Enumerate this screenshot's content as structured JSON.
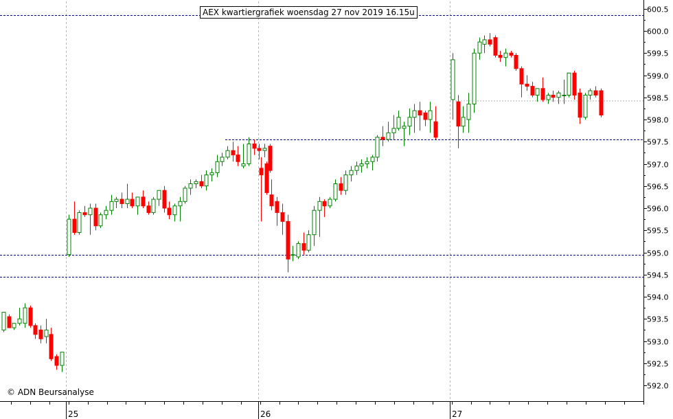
{
  "title": "AEX kwartiergrafiek woensdag 27 nov 2019 16.15u",
  "copyright": "© ADN Beursanalyse",
  "colors": {
    "up": "#008000",
    "down": "#ff0000",
    "refline": "#00008b",
    "grid": "#b4b4b4"
  },
  "chart_data": {
    "type": "candlestick",
    "y_axis_ticks": [
      "592.0",
      "592.5",
      "593.0",
      "593.5",
      "594.0",
      "594.5",
      "595.0",
      "595.5",
      "596.0",
      "596.5",
      "597.0",
      "597.5",
      "598.0",
      "598.5",
      "599.0",
      "599.5",
      "600.0",
      "600.5"
    ],
    "ylim": [
      591.9,
      600.6
    ],
    "x_axis_ticks": [
      "25",
      "26",
      "27"
    ],
    "reference_lines": [
      600.35,
      597.55,
      594.95,
      594.45
    ],
    "last_price": 598.42,
    "series": [
      {
        "day": "24",
        "candles": [
          [
            593.25,
            593.65,
            593.2,
            593.65
          ],
          [
            593.55,
            593.6,
            593.3,
            593.3
          ],
          [
            593.3,
            593.4,
            593.25,
            593.4
          ],
          [
            593.4,
            593.75,
            593.35,
            593.5
          ],
          [
            593.4,
            593.85,
            593.3,
            593.75
          ],
          [
            593.75,
            593.8,
            593.3,
            593.35
          ],
          [
            593.35,
            593.4,
            593.05,
            593.15
          ],
          [
            593.25,
            593.35,
            592.95,
            593.05
          ],
          [
            593.1,
            593.5,
            592.95,
            593.25
          ],
          [
            593.15,
            593.3,
            592.55,
            592.6
          ],
          [
            592.65,
            592.7,
            592.35,
            592.45
          ],
          [
            592.45,
            592.75,
            592.3,
            592.75
          ]
        ]
      },
      {
        "day": "25",
        "candles": [
          [
            594.95,
            595.85,
            594.9,
            595.75
          ],
          [
            595.75,
            596.15,
            595.4,
            595.45
          ],
          [
            595.45,
            595.95,
            595.4,
            595.9
          ],
          [
            595.9,
            596.05,
            595.8,
            595.85
          ],
          [
            595.85,
            596.1,
            595.4,
            596.0
          ],
          [
            596.0,
            596.1,
            595.5,
            595.6
          ],
          [
            595.6,
            595.9,
            595.55,
            595.85
          ],
          [
            595.85,
            596.05,
            595.75,
            595.95
          ],
          [
            595.95,
            596.3,
            595.85,
            596.15
          ],
          [
            596.15,
            596.25,
            596.0,
            596.2
          ],
          [
            596.2,
            596.35,
            596.0,
            596.1
          ],
          [
            596.1,
            596.55,
            596.0,
            596.2
          ],
          [
            596.2,
            596.35,
            596.0,
            596.05
          ],
          [
            596.05,
            596.25,
            595.85,
            596.25
          ],
          [
            596.25,
            596.4,
            596.0,
            596.05
          ],
          [
            596.05,
            596.15,
            595.85,
            595.9
          ],
          [
            595.9,
            596.25,
            595.85,
            596.2
          ],
          [
            596.2,
            596.4,
            596.05,
            596.4
          ],
          [
            596.4,
            596.5,
            595.9,
            596.0
          ],
          [
            596.0,
            596.15,
            595.75,
            595.85
          ],
          [
            595.85,
            596.1,
            595.7,
            596.05
          ],
          [
            596.05,
            596.25,
            595.7,
            596.15
          ],
          [
            596.15,
            596.5,
            596.1,
            596.45
          ],
          [
            596.45,
            596.65,
            596.3,
            596.55
          ],
          [
            596.55,
            596.65,
            596.45,
            596.6
          ],
          [
            596.6,
            596.75,
            596.45,
            596.5
          ],
          [
            596.5,
            596.85,
            596.4,
            596.75
          ],
          [
            596.75,
            596.9,
            596.6,
            596.8
          ],
          [
            596.8,
            597.2,
            596.7,
            597.05
          ],
          [
            597.05,
            597.25,
            596.95,
            597.15
          ],
          [
            597.15,
            597.4,
            597.1,
            597.3
          ],
          [
            597.3,
            597.5,
            597.05,
            597.2
          ],
          [
            597.2,
            597.4,
            596.95,
            597.05
          ],
          [
            596.95,
            597.45,
            596.9,
            597.0
          ],
          [
            597.0,
            597.6,
            596.95,
            597.45
          ],
          [
            597.45,
            597.55,
            597.2,
            597.35
          ],
          [
            597.35,
            597.45,
            597.1,
            597.3
          ],
          [
            597.3,
            597.45,
            597.15,
            597.35
          ],
          [
            597.4,
            597.45,
            596.8,
            596.85
          ]
        ]
      },
      {
        "day": "26",
        "candles": [
          [
            596.9,
            597.15,
            595.7,
            596.75
          ],
          [
            597.0,
            597.05,
            596.3,
            596.35
          ],
          [
            596.3,
            596.65,
            595.95,
            596.05
          ],
          [
            596.15,
            596.25,
            595.6,
            595.9
          ],
          [
            595.9,
            596.1,
            595.4,
            595.7
          ],
          [
            595.7,
            595.85,
            594.55,
            594.85
          ],
          [
            594.95,
            595.15,
            594.8,
            594.95
          ],
          [
            594.9,
            595.25,
            594.85,
            595.2
          ],
          [
            595.2,
            595.45,
            594.95,
            595.05
          ],
          [
            595.05,
            595.5,
            595.0,
            595.4
          ],
          [
            595.4,
            596.05,
            595.15,
            595.95
          ],
          [
            595.95,
            596.25,
            595.35,
            596.15
          ],
          [
            596.15,
            596.2,
            595.8,
            596.05
          ],
          [
            596.05,
            596.25,
            596.0,
            596.2
          ],
          [
            596.2,
            596.65,
            596.15,
            596.55
          ],
          [
            596.55,
            596.7,
            596.3,
            596.4
          ],
          [
            596.4,
            596.85,
            596.3,
            596.75
          ],
          [
            596.75,
            596.95,
            596.6,
            596.85
          ],
          [
            596.85,
            597.05,
            596.75,
            596.95
          ],
          [
            596.95,
            597.1,
            596.8,
            597.0
          ],
          [
            597.0,
            597.15,
            596.9,
            597.05
          ],
          [
            597.05,
            597.2,
            596.85,
            597.15
          ],
          [
            597.15,
            597.65,
            597.05,
            597.6
          ],
          [
            597.6,
            597.85,
            597.4,
            597.55
          ],
          [
            597.55,
            597.95,
            597.5,
            597.7
          ],
          [
            597.7,
            598.1,
            597.55,
            597.8
          ],
          [
            597.8,
            598.2,
            597.75,
            598.05
          ],
          [
            597.8,
            597.95,
            597.4,
            597.85
          ],
          [
            597.85,
            598.25,
            597.65,
            598.05
          ],
          [
            598.05,
            598.35,
            597.7,
            598.2
          ],
          [
            598.2,
            598.4,
            597.75,
            598.1
          ],
          [
            598.15,
            598.2,
            597.85,
            598.0
          ],
          [
            598.0,
            598.4,
            597.7,
            598.2
          ],
          [
            597.95,
            598.3,
            597.55,
            597.6
          ]
        ]
      },
      {
        "day": "27",
        "candles": [
          [
            598.45,
            599.5,
            598.0,
            599.35
          ],
          [
            598.4,
            598.55,
            597.35,
            597.85
          ],
          [
            597.85,
            598.3,
            597.7,
            598.05
          ],
          [
            598.0,
            598.6,
            597.7,
            598.35
          ],
          [
            598.35,
            599.6,
            598.15,
            599.5
          ],
          [
            599.5,
            599.85,
            599.35,
            599.75
          ],
          [
            599.7,
            599.9,
            599.5,
            599.8
          ],
          [
            599.8,
            599.95,
            599.65,
            599.7
          ],
          [
            599.85,
            599.9,
            599.4,
            599.45
          ],
          [
            599.45,
            599.55,
            599.3,
            599.4
          ],
          [
            599.4,
            599.6,
            599.2,
            599.5
          ],
          [
            599.5,
            599.55,
            599.4,
            599.45
          ],
          [
            599.45,
            599.5,
            599.1,
            599.15
          ],
          [
            599.15,
            599.2,
            598.5,
            598.8
          ],
          [
            598.8,
            599.0,
            598.65,
            598.75
          ],
          [
            598.75,
            598.85,
            598.5,
            598.55
          ],
          [
            598.55,
            598.7,
            598.4,
            598.7
          ],
          [
            598.7,
            598.95,
            598.4,
            598.45
          ],
          [
            598.45,
            598.6,
            598.35,
            598.55
          ],
          [
            598.55,
            598.65,
            598.4,
            598.5
          ],
          [
            598.5,
            598.65,
            598.35,
            598.6
          ],
          [
            598.55,
            598.9,
            598.35,
            598.55
          ],
          [
            598.55,
            599.05,
            598.5,
            599.05
          ],
          [
            599.05,
            599.1,
            598.45,
            598.55
          ],
          [
            598.6,
            598.7,
            597.9,
            598.05
          ],
          [
            598.05,
            598.6,
            598.0,
            598.55
          ],
          [
            598.55,
            598.7,
            598.45,
            598.65
          ],
          [
            598.65,
            598.75,
            598.5,
            598.55
          ],
          [
            598.65,
            598.7,
            598.05,
            598.1
          ]
        ]
      }
    ]
  }
}
